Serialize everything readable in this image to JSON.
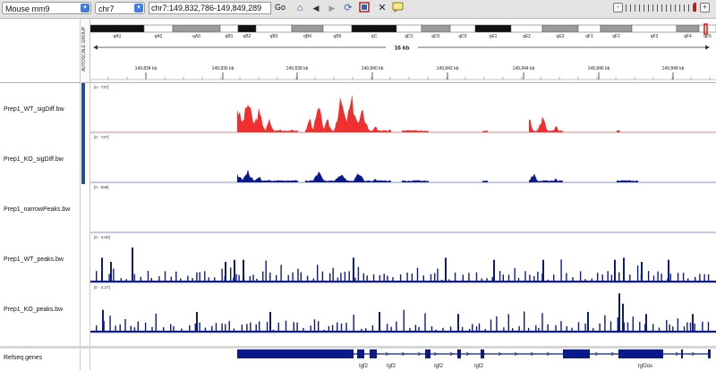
{
  "toolbar": {
    "genome": "Mouse mm9",
    "chromosome": "chr7",
    "locus": "chr7:149,832,786-149,849,289",
    "go_label": "Go",
    "icons": [
      "home-icon",
      "back-icon",
      "forward-icon",
      "refresh-icon",
      "roi-icon",
      "resize-icon",
      "popup-text-icon"
    ],
    "zoom_minus": "-",
    "zoom_plus": "+"
  },
  "header": {
    "attribute_label": "AUTOSCALE GROUP",
    "bands": [
      {
        "name": "qA1",
        "stain": "black"
      },
      {
        "name": "qA2",
        "stain": "white"
      },
      {
        "name": "qA3",
        "stain": "grey"
      },
      {
        "name": "qB1",
        "stain": "white"
      },
      {
        "name": "qB2",
        "stain": "black"
      },
      {
        "name": "qB3",
        "stain": "white"
      },
      {
        "name": "qB4",
        "stain": "grey"
      },
      {
        "name": "qB5",
        "stain": "white"
      },
      {
        "name": "qC",
        "stain": "black"
      },
      {
        "name": "qD1",
        "stain": "white"
      },
      {
        "name": "qD2",
        "stain": "grey"
      },
      {
        "name": "qD3",
        "stain": "white"
      },
      {
        "name": "qE1",
        "stain": "black"
      },
      {
        "name": "qE2",
        "stain": "white"
      },
      {
        "name": "qE3",
        "stain": "grey"
      },
      {
        "name": "qF1",
        "stain": "white"
      },
      {
        "name": "qF2",
        "stain": "grey"
      },
      {
        "name": "qF3",
        "stain": "white"
      },
      {
        "name": "qF4",
        "stain": "grey"
      },
      {
        "name": "qF5",
        "stain": "white"
      }
    ],
    "span_label": "16 kb",
    "ticks": [
      "149,834 kb",
      "149,836 kb",
      "149,838 kb",
      "149,840 kb",
      "149,842 kb",
      "149,844 kb",
      "149,846 kb",
      "149,848 kb"
    ]
  },
  "tracks": [
    {
      "name": "Prep1_WT_sigDiff.bw",
      "range": "[0 - 737]",
      "color": "#f03030",
      "kind": "signal",
      "profile": "wt"
    },
    {
      "name": "Prep1_KO_sigDiff.bw",
      "range": "[0 - 737]",
      "color": "#0a1a8c",
      "kind": "signal",
      "profile": "ko"
    },
    {
      "name": "Prep1_narrowPeaks.bw",
      "range": "[0 - 598]",
      "color": "#0a1a8c",
      "kind": "empty",
      "profile": "none"
    },
    {
      "name": "Prep1_WT_peaks.bw",
      "range": "[0 - 3.00]",
      "color": "#0a1a8c",
      "kind": "bars",
      "profile": "wtpeaks"
    },
    {
      "name": "Prep1_KO_peaks.bw",
      "range": "[0 - 4.27]",
      "color": "#0a1a8c",
      "kind": "bars",
      "profile": "kopeaks"
    }
  ],
  "refseq": {
    "name": "Refseq genes",
    "labels": [
      "Igf2",
      "Igf2",
      "Igf2",
      "Igf2",
      "Igf2os"
    ],
    "color": "#0a1a8c"
  }
}
